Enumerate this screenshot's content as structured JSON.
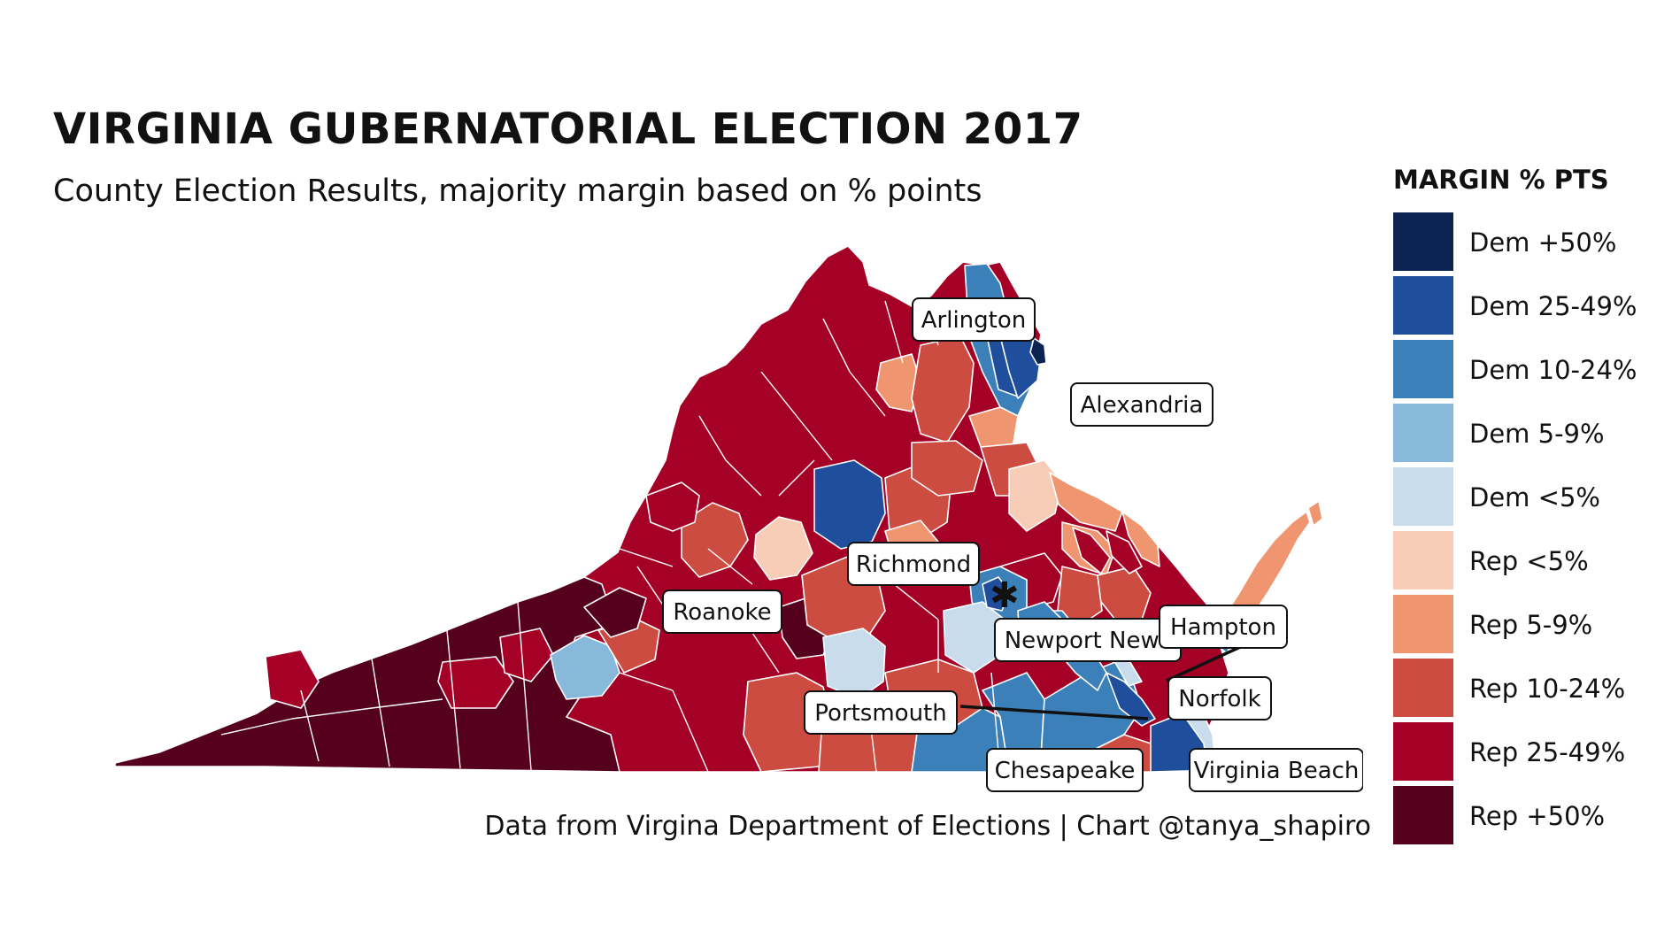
{
  "title": "VIRGINIA GUBERNATORIAL ELECTION 2017",
  "subtitle": "County Election Results, majority margin based on % points",
  "caption": "Data from Virgina Department of Elections | Chart @tanya_shapiro",
  "legend": {
    "title": "MARGIN % PTS",
    "items": [
      {
        "label": "Dem +50%",
        "color": "#0b2350"
      },
      {
        "label": "Dem 25-49%",
        "color": "#1f4e9c"
      },
      {
        "label": "Dem 10-24%",
        "color": "#3c80b9"
      },
      {
        "label": "Dem 5-9%",
        "color": "#88b9da"
      },
      {
        "label": "Dem <5%",
        "color": "#c8dcec"
      },
      {
        "label": "Rep <5%",
        "color": "#f8cdb7"
      },
      {
        "label": "Rep 5-9%",
        "color": "#ef9670"
      },
      {
        "label": "Rep 10-24%",
        "color": "#cc4c41"
      },
      {
        "label": "Rep 25-49%",
        "color": "#a50026"
      },
      {
        "label": "Rep +50%",
        "color": "#55001c"
      }
    ]
  },
  "city_labels": [
    {
      "name": "Arlington"
    },
    {
      "name": "Alexandria"
    },
    {
      "name": "Richmond"
    },
    {
      "name": "Roanoke"
    },
    {
      "name": "Newport News"
    },
    {
      "name": "Hampton"
    },
    {
      "name": "Norfolk"
    },
    {
      "name": "Portsmouth"
    },
    {
      "name": "Chesapeake"
    },
    {
      "name": "Virginia Beach"
    }
  ]
}
